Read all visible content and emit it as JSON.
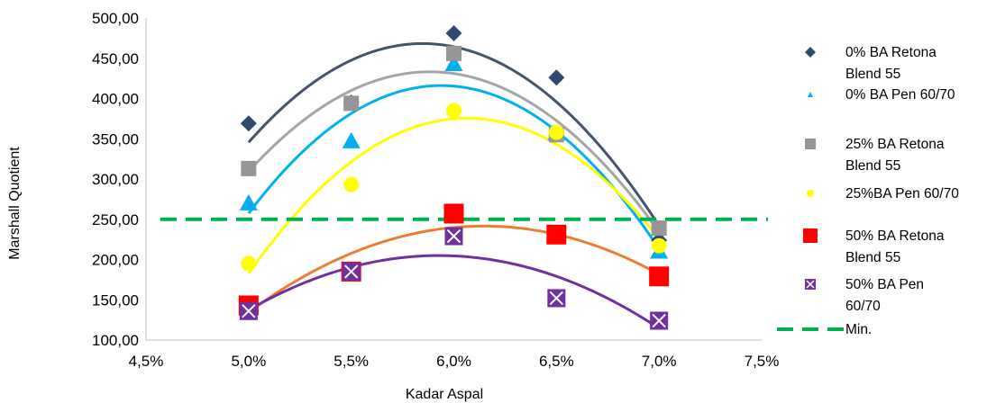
{
  "chart_data": {
    "type": "scatter",
    "title": "",
    "xlabel": "Kadar Aspal",
    "ylabel": "Marshall Quotient",
    "xlim": [
      4.5,
      7.5
    ],
    "ylim": [
      100,
      500
    ],
    "x_ticks": [
      "4,5%",
      "5,0%",
      "5,5%",
      "6,0%",
      "6,5%",
      "7,0%",
      "7,5%"
    ],
    "y_ticks": [
      "100,00",
      "150,00",
      "200,00",
      "250,00",
      "300,00",
      "350,00",
      "400,00",
      "450,00",
      "500,00"
    ],
    "x_tick_values": [
      4.5,
      5.0,
      5.5,
      6.0,
      6.5,
      7.0,
      7.5
    ],
    "y_tick_values": [
      100,
      150,
      200,
      250,
      300,
      350,
      400,
      450,
      500
    ],
    "grid": false,
    "legend_position": "right",
    "series": [
      {
        "name": "0% BA Retona Blend 55",
        "legend_lines": [
          "0% BA Retona",
          "Blend 55"
        ],
        "marker": "diamond",
        "color": "#2e4a6e",
        "trend_color": "#44546a",
        "x": [
          5.0,
          5.5,
          6.0,
          6.5,
          7.0
        ],
        "y": [
          369,
          395,
          481,
          426,
          224
        ]
      },
      {
        "name": "0% BA Pen 60/70",
        "legend_lines": [
          "0% BA Pen 60/70"
        ],
        "marker": "triangle",
        "color": "#00b0f0",
        "trend_color": "#00b0f0",
        "x": [
          5.0,
          5.5,
          6.0,
          6.5,
          7.0
        ],
        "y": [
          270,
          347,
          443,
          357,
          210
        ]
      },
      {
        "name": "25% BA Retona Blend 55",
        "legend_lines": [
          "25% BA Retona",
          "Blend 55"
        ],
        "marker": "square",
        "color": "#969696",
        "trend_color": "#a5a5a5",
        "x": [
          5.0,
          5.5,
          6.0,
          6.5,
          7.0
        ],
        "y": [
          313,
          394,
          456,
          355,
          239
        ]
      },
      {
        "name": "25%BA Pen 60/70",
        "legend_lines": [
          "25%BA Pen 60/70"
        ],
        "marker": "circle",
        "color": "#ffff00",
        "trend_color": "#ffff00",
        "x": [
          5.0,
          5.5,
          6.0,
          6.5,
          7.0
        ],
        "y": [
          195,
          293,
          385,
          358,
          217
        ]
      },
      {
        "name": "50% BA Retona Blend 55",
        "legend_lines": [
          "50% BA Retona",
          "Blend 55"
        ],
        "marker": "square-large",
        "color": "#ff0000",
        "trend_color": "#ed7d31",
        "x": [
          5.0,
          5.5,
          6.0,
          6.5,
          7.0
        ],
        "y": [
          143,
          185,
          257,
          231,
          179
        ]
      },
      {
        "name": "50% BA Pen 60/70",
        "legend_lines": [
          "50% BA Pen",
          "60/70"
        ],
        "marker": "boxed-x",
        "color": "#7030a0",
        "trend_color": "#7030a0",
        "x": [
          5.0,
          5.5,
          6.0,
          6.5,
          7.0
        ],
        "y": [
          136,
          185,
          229,
          152,
          124
        ]
      }
    ],
    "reference_line": {
      "name": "Min.",
      "y": 250,
      "color": "#00b050",
      "style": "dashed"
    }
  }
}
